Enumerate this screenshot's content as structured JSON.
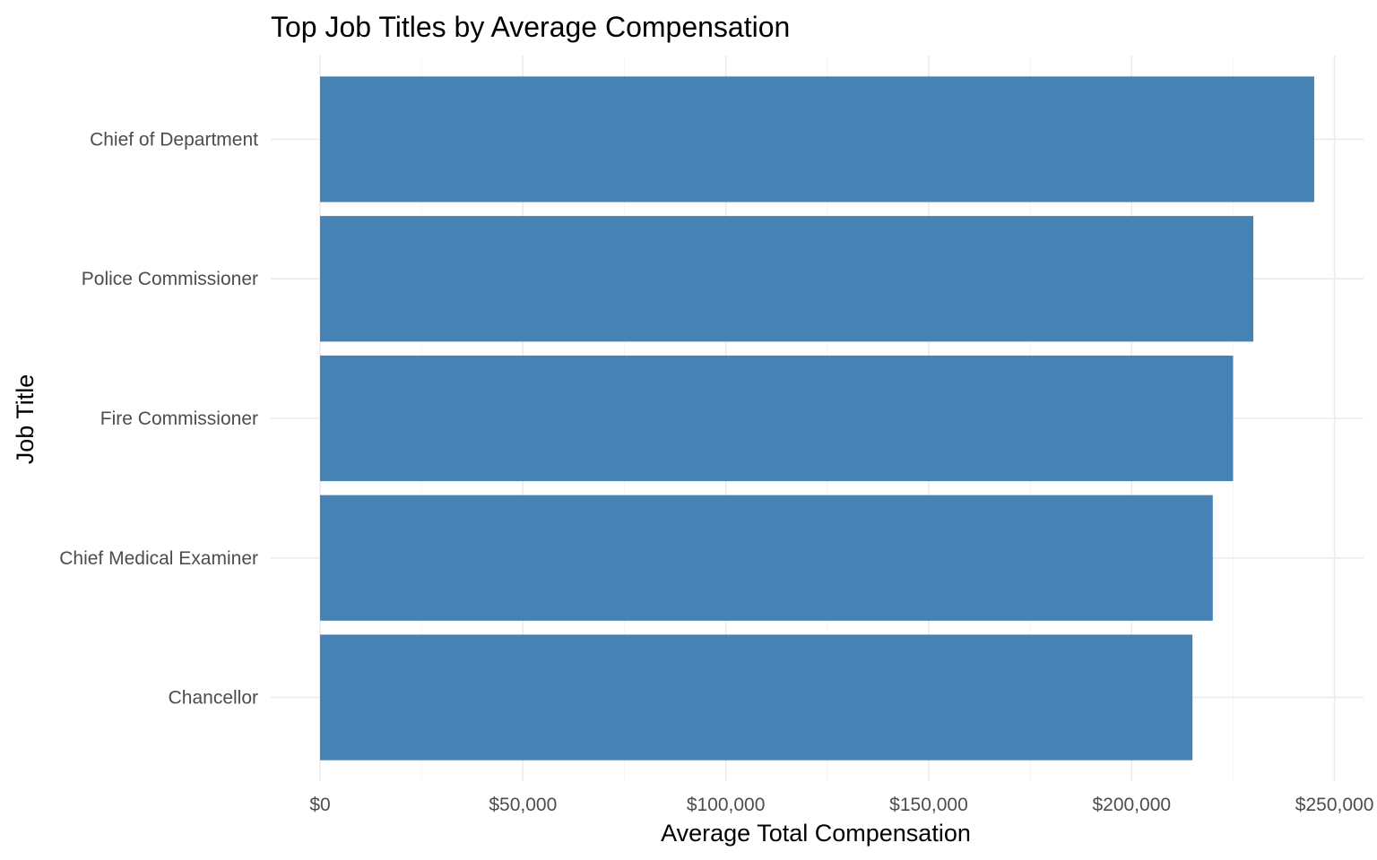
{
  "chart_data": {
    "type": "bar",
    "orientation": "horizontal",
    "title": "Top Job Titles by Average Compensation",
    "xlabel": "Average Total Compensation",
    "ylabel": "Job Title",
    "categories": [
      "Chief of Department",
      "Police Commissioner",
      "Fire Commissioner",
      "Chief Medical Examiner",
      "Chancellor"
    ],
    "values": [
      245000,
      230000,
      225000,
      220000,
      215000
    ],
    "xlim": [
      0,
      257000
    ],
    "x_ticks": [
      0,
      50000,
      100000,
      150000,
      200000,
      250000
    ],
    "x_tick_labels": [
      "$0",
      "$50,000",
      "$100,000",
      "$150,000",
      "$200,000",
      "$250,000"
    ],
    "bar_color": "#4682B4",
    "grid": true,
    "legend": "none"
  }
}
